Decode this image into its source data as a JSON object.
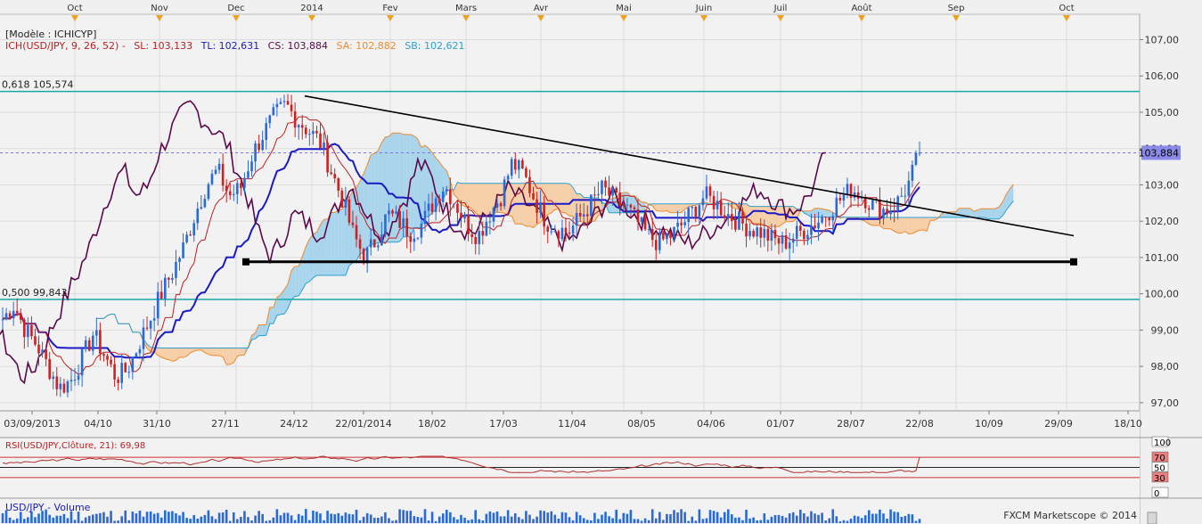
{
  "chart_data": {
    "type": "candlestick",
    "symbol": "USD/JPY",
    "model_label": "[Modèle : ICHICYP]",
    "indicator": {
      "name": "ICH(USD/JPY, 9, 26, 52) -",
      "sl_label": "SL: 103,133",
      "tl_label": "TL: 102,631",
      "cs_label": "CS: 103,884",
      "sa_label": "SA: 102,882",
      "sb_label": "SB: 102,621"
    },
    "last_price": 103.884,
    "last_price_label": "103,884",
    "y_axis": {
      "min": 96.8,
      "max": 107.7,
      "ticks": [
        "97,00",
        "98,00",
        "99,00",
        "100,00",
        "101,00",
        "102,00",
        "103,00",
        "104,00",
        "105,00",
        "106,00",
        "107,00"
      ]
    },
    "month_labels": [
      "Oct",
      "Nov",
      "Dec",
      "2014",
      "Fev",
      "Mars",
      "Avr",
      "Mai",
      "Juin",
      "Juil",
      "Août",
      "Sep",
      "Oct"
    ],
    "date_labels": [
      "03/09/2013",
      "04/10",
      "31/10",
      "27/11",
      "24/12",
      "22/01/2014",
      "18/02",
      "17/03",
      "11/04",
      "08/05",
      "04/06",
      "01/07",
      "28/07",
      "22/08",
      "10/09",
      "29/09",
      "18/10"
    ],
    "fib_levels": [
      {
        "label": "0,618 105,574",
        "value": 105.574
      },
      {
        "label": "0,500 99,843",
        "value": 99.843
      }
    ],
    "horizontal_support": {
      "value": 100.88
    },
    "trendline": {
      "start_value": 105.45,
      "end_value": 101.6
    },
    "ohlc_anchor_closes": [
      99.3,
      99.7,
      99.0,
      98.6,
      98.0,
      97.4,
      97.6,
      98.2,
      98.9,
      98.3,
      97.7,
      97.9,
      98.6,
      99.3,
      100.0,
      100.6,
      101.3,
      102.2,
      103.0,
      103.4,
      102.7,
      102.9,
      103.8,
      104.4,
      104.9,
      105.2,
      104.8,
      104.5,
      104.2,
      103.4,
      102.6,
      101.6,
      101.0,
      101.5,
      102.2,
      102.0,
      101.7,
      101.9,
      102.5,
      103.0,
      102.5,
      101.9,
      101.6,
      102.2,
      102.7,
      103.6,
      103.3,
      102.6,
      102.0,
      101.8,
      101.7,
      102.1,
      102.5,
      102.9,
      102.6,
      102.4,
      102.0,
      101.6,
      101.4,
      101.6,
      101.9,
      102.3,
      102.7,
      102.5,
      102.2,
      102.0,
      101.8,
      101.7,
      101.5,
      101.4,
      101.6,
      101.8,
      102.0,
      102.3,
      102.6,
      102.9,
      102.7,
      102.4,
      102.3,
      102.5,
      103.0,
      103.884
    ],
    "rsi": {
      "label": "RSI(USD/JPY,Clôture, 21): 69,98",
      "scale_labels": [
        "100",
        "70",
        "50",
        "30",
        "0"
      ],
      "value": 69.98
    },
    "volume": {
      "label": "USD/JPY - Volume"
    },
    "watermark": "FXCM Marketscope © 2014"
  },
  "colors": {
    "bull": "#2a6ad8",
    "bear": "#d02020",
    "tenkan": "#c02020",
    "kijun": "#1a1ac8",
    "chikou": "#5a0a4a",
    "senkou_a": "#f08a30",
    "senkou_b": "#2ea0d0",
    "kumo_up": "#a8d4ec",
    "kumo_down": "#f6cfa8",
    "fib": "#19a8a8",
    "last_price_bg": "#8a8ae8"
  }
}
